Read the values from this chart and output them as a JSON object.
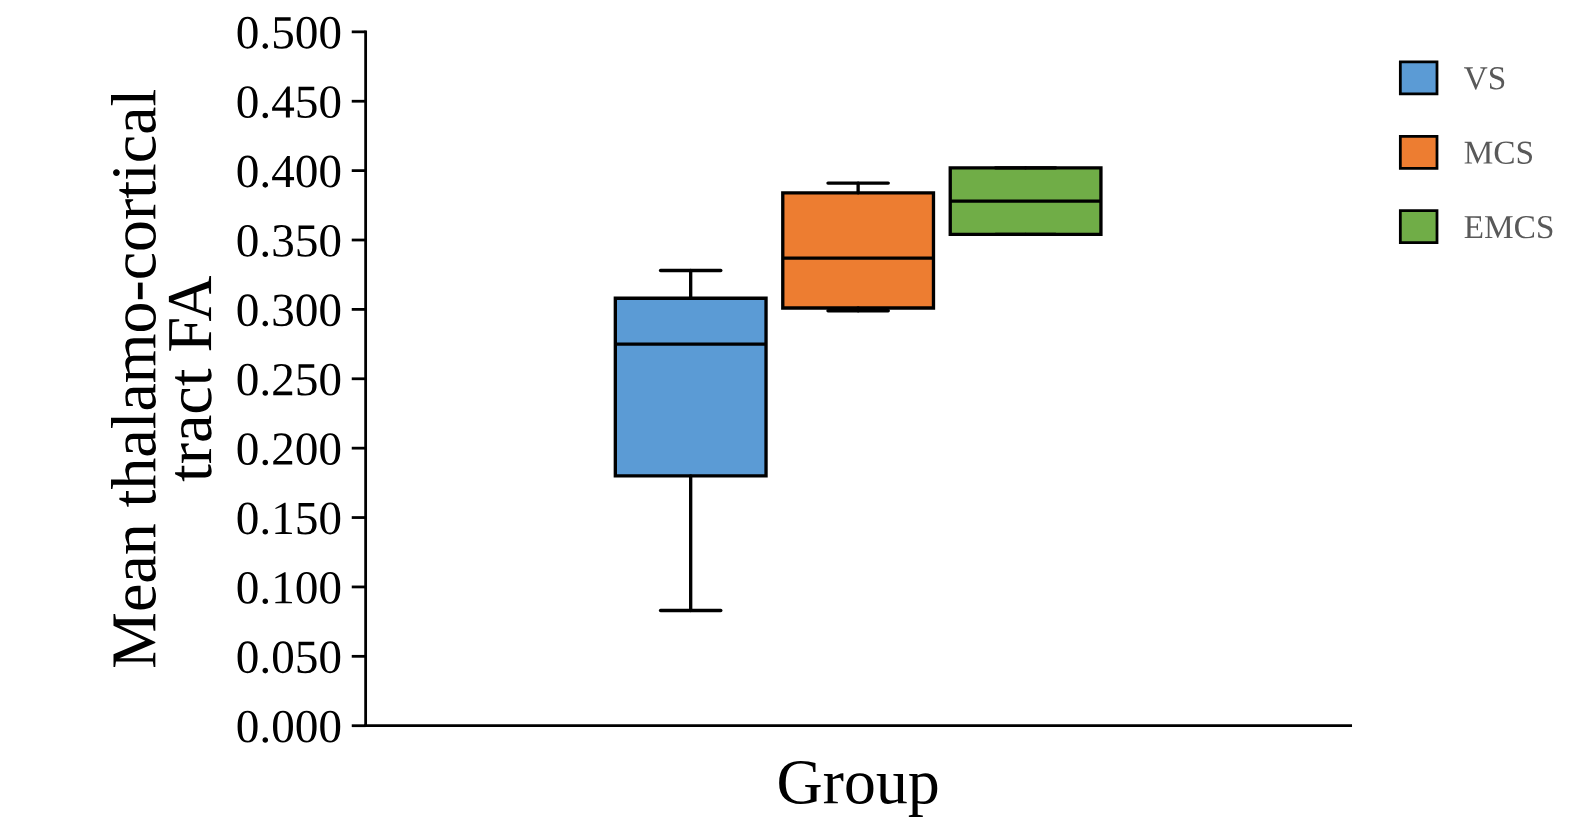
{
  "chart_data": {
    "type": "box",
    "xlabel": "Group",
    "ylabel": "Mean thalamo-cortical\ntract FA",
    "categories": [
      null
    ],
    "series": [
      {
        "name": "VS",
        "color": "#5b9bd5",
        "boxes": [
          {
            "low": 0.083,
            "q1": 0.18,
            "median": 0.275,
            "q3": 0.308,
            "high": 0.328
          }
        ]
      },
      {
        "name": "MCS",
        "color": "#ed7d31",
        "boxes": [
          {
            "low": 0.299,
            "q1": 0.301,
            "median": 0.337,
            "q3": 0.384,
            "high": 0.391
          }
        ]
      },
      {
        "name": "EMCS",
        "color": "#70ad47",
        "boxes": [
          {
            "low": 0.354,
            "q1": 0.354,
            "median": 0.378,
            "q3": 0.402,
            "high": 0.402
          }
        ]
      }
    ],
    "ylim": [
      0,
      0.5
    ],
    "yticks": [
      {
        "value": 0,
        "label": "0.000"
      },
      {
        "value": 0.05,
        "label": "0.050"
      },
      {
        "value": 0.1,
        "label": "0.100"
      },
      {
        "value": 0.15,
        "label": "0.150"
      },
      {
        "value": 0.2,
        "label": "0.200"
      },
      {
        "value": 0.25,
        "label": "0.250"
      },
      {
        "value": 0.3,
        "label": "0.300"
      },
      {
        "value": 0.35,
        "label": "0.350"
      },
      {
        "value": 0.4,
        "label": "0.400"
      },
      {
        "value": 0.45,
        "label": "0.450"
      },
      {
        "value": 0.5,
        "label": "0.500"
      }
    ],
    "tick_labels": "y",
    "grid": false,
    "legend": "top right"
  }
}
